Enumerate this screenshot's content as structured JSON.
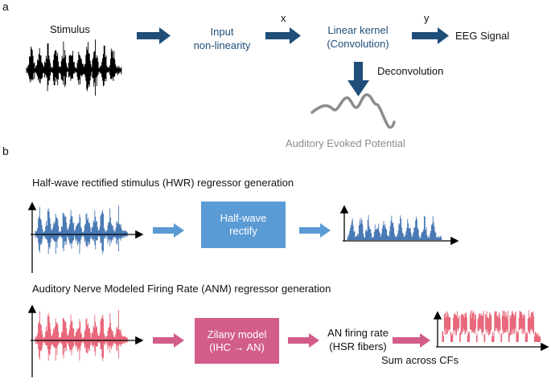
{
  "panel_a": {
    "label": "a",
    "stimulus": "Stimulus",
    "input_nonlinearity": [
      "Input",
      "non-linearity"
    ],
    "x_label": "x",
    "linear_kernel": [
      "Linear kernel",
      "(Convolution)"
    ],
    "y_label": "y",
    "eeg_signal": "EEG Signal",
    "deconvolution": "Deconvolution",
    "aep": "Auditory Evoked Potential"
  },
  "panel_b": {
    "label": "b",
    "hwr_title": "Half-wave rectified stimulus (HWR) regressor generation",
    "hwr_box": [
      "Half-wave",
      "rectify"
    ],
    "anm_title": "Auditory Nerve Modeled Firing Rate (ANM) regressor generation",
    "anm_box": [
      "Zilany model",
      "(IHC → AN)"
    ],
    "an_rate": [
      "AN firing rate",
      "(HSR fibers)"
    ],
    "sum_cfs": "Sum across CFs"
  },
  "colors": {
    "arrow_dark": "#1f4e79",
    "blue_wave": "#4a7ab5",
    "blue_box": "#5b9bd5",
    "blue_arrow": "#5b9bd5",
    "red_wave": "#e8677a",
    "pink_box": "#d25d8a",
    "pink_arrow": "#d25d8a",
    "aep_curve": "#8c8c8c"
  }
}
